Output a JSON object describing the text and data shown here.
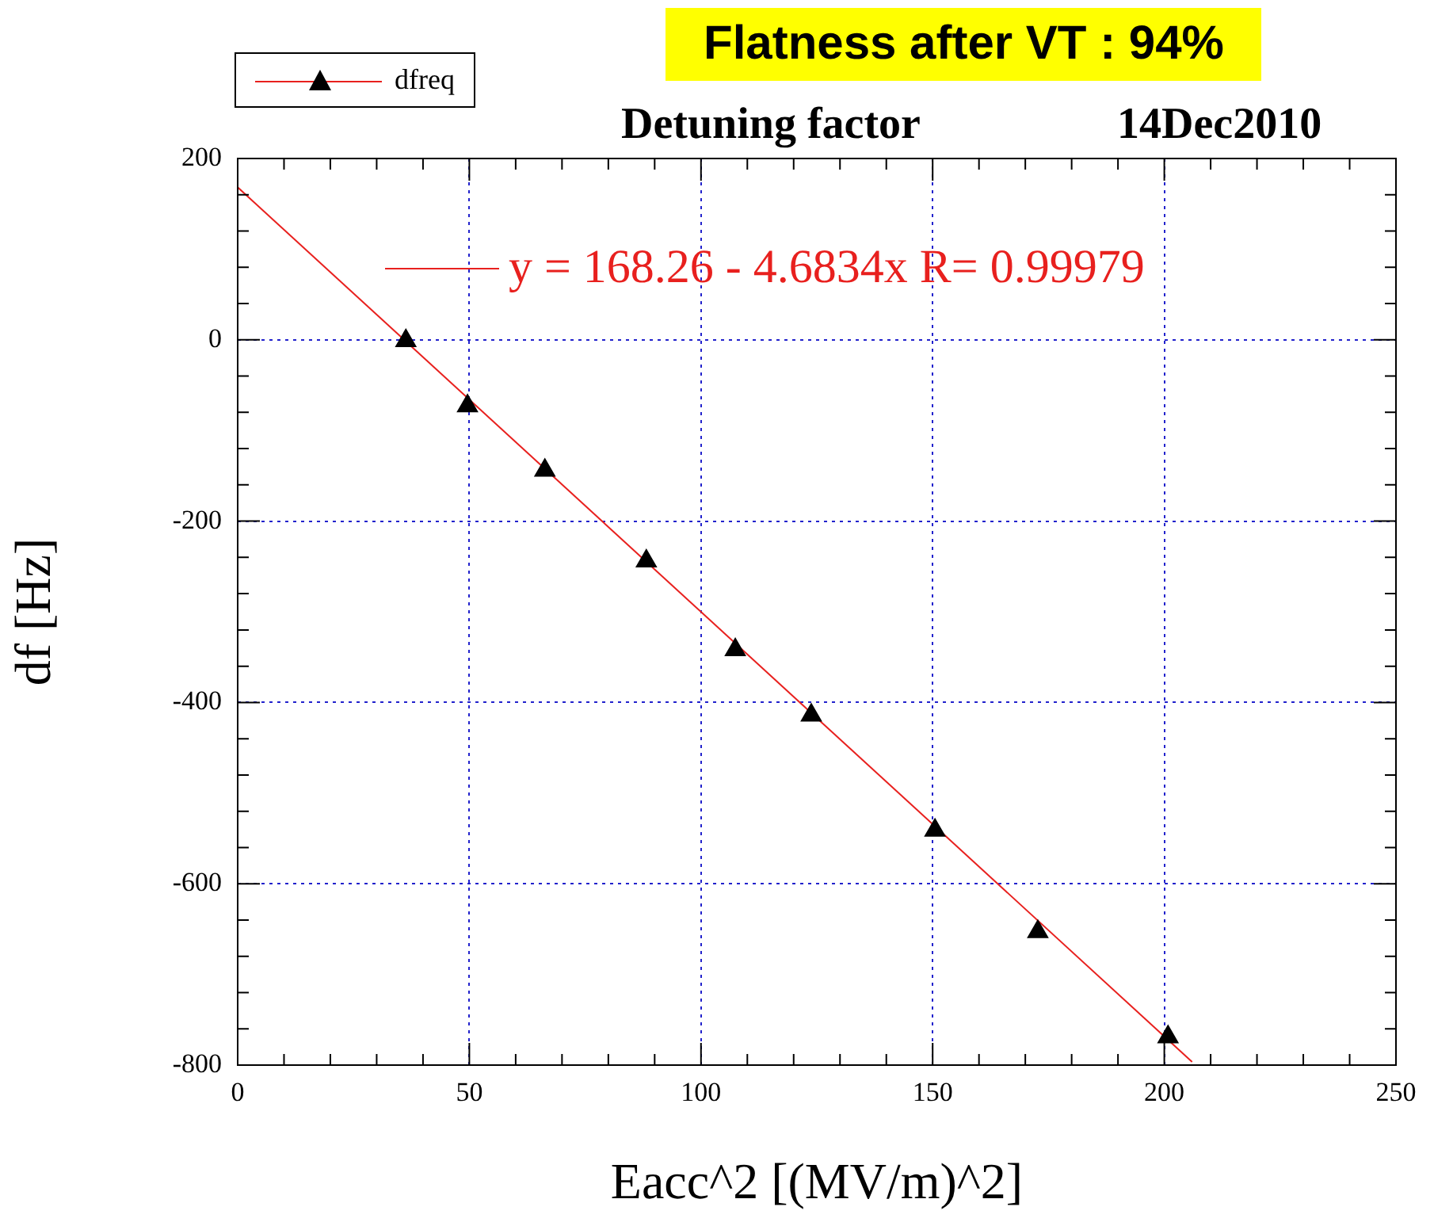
{
  "chart_data": {
    "type": "scatter",
    "title": "Flatness after VT : 94%",
    "subtitle": "Detuning factor",
    "annotations": [
      "14Dec2010"
    ],
    "xlabel": "Eacc^2 [(MV/m)^2]",
    "ylabel": "df [Hz]",
    "xlim": [
      0,
      250
    ],
    "xticks": [
      0,
      50,
      100,
      150,
      200,
      250
    ],
    "ylim": [
      -800,
      200
    ],
    "yticks": [
      -800,
      -600,
      -400,
      -200,
      0,
      200
    ],
    "grid": true,
    "legend": "top left",
    "series": [
      {
        "name": "dfreq",
        "type": "scatter",
        "color": "#000000",
        "marker": "triangle",
        "x": [
          36.3,
          49.6,
          66.3,
          88.2,
          107.4,
          123.8,
          150.5,
          172.7,
          200.8
        ],
        "values": [
          -1,
          -73,
          -144,
          -244,
          -342,
          -414,
          -541,
          -653,
          -769
        ]
      },
      {
        "name": "y = 168.26 - 4.6834x   R= 0.99979",
        "type": "line",
        "color": "#e8201e",
        "marker": "none",
        "x": [
          0,
          206
        ],
        "values": [
          168.26,
          -796.5
        ]
      }
    ]
  }
}
